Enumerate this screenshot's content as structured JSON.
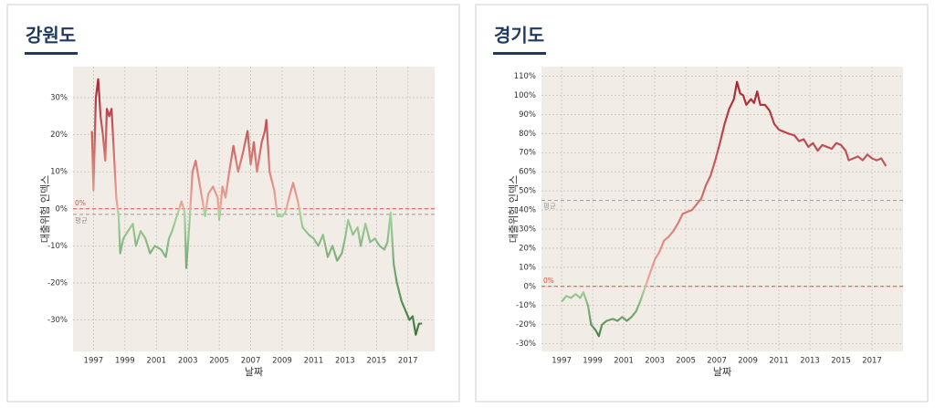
{
  "chart_data": [
    {
      "type": "line",
      "title": "강원도",
      "xlabel": "날짜",
      "ylabel": "대출위험 인덱스",
      "x": [
        1996.9,
        1997.0,
        1997.15,
        1997.3,
        1997.45,
        1997.6,
        1997.75,
        1997.85,
        1998.0,
        1998.15,
        1998.3,
        1998.45,
        1998.6,
        1998.7,
        1998.9,
        1999.2,
        1999.5,
        1999.7,
        2000.0,
        2000.3,
        2000.6,
        2000.9,
        2001.3,
        2001.6,
        2001.8,
        2002.0,
        2002.3,
        2002.6,
        2002.8,
        2002.9,
        2003.1,
        2003.3,
        2003.5,
        2003.7,
        2003.9,
        2004.1,
        2004.3,
        2004.6,
        2004.9,
        2005.0,
        2005.2,
        2005.4,
        2005.6,
        2005.9,
        2006.2,
        2006.5,
        2006.8,
        2007.0,
        2007.2,
        2007.4,
        2007.7,
        2007.9,
        2008.0,
        2008.2,
        2008.5,
        2008.7,
        2009.0,
        2009.2,
        2009.5,
        2009.7,
        2010.0,
        2010.3,
        2010.7,
        2011.0,
        2011.3,
        2011.6,
        2011.9,
        2012.2,
        2012.5,
        2012.8,
        2013.0,
        2013.2,
        2013.5,
        2013.8,
        2014.0,
        2014.3,
        2014.6,
        2014.9,
        2015.2,
        2015.5,
        2015.7,
        2015.9,
        2016.1,
        2016.3,
        2016.6,
        2016.9,
        2017.1,
        2017.3,
        2017.5,
        2017.7,
        2017.9
      ],
      "values": [
        21,
        5,
        30,
        35,
        25,
        20,
        13,
        27,
        25,
        27,
        15,
        3,
        -2,
        -12,
        -8,
        -6,
        -4,
        -10,
        -6,
        -8,
        -12,
        -10,
        -11,
        -13,
        -8,
        -6,
        -2,
        2,
        -1,
        -16,
        -4,
        10,
        13,
        8,
        3,
        -2,
        4,
        6,
        3,
        -3,
        6,
        3,
        9,
        17,
        10,
        15,
        21,
        12,
        18,
        10,
        18,
        21,
        24,
        10,
        5,
        -2,
        -2,
        -1,
        4,
        7,
        2,
        -5,
        -7,
        -8,
        -10,
        -7,
        -13,
        -10,
        -14,
        -12,
        -8,
        -3,
        -7,
        -5,
        -10,
        -4,
        -9,
        -8,
        -10,
        -11,
        -9,
        -1,
        -15,
        -20,
        -25,
        -28,
        -30,
        -29,
        -34,
        -31,
        -31
      ],
      "negative_colors": [
        "#2f6b33",
        "#a8d5a0"
      ],
      "positive_colors": [
        "#f0a898",
        "#a01c2c"
      ],
      "xlim": [
        1995.7,
        2018.7
      ],
      "ylim": [
        -38.5,
        38.4
      ],
      "xticks": [
        1997,
        1999,
        2001,
        2003,
        2005,
        2007,
        2009,
        2011,
        2013,
        2015,
        2017
      ],
      "yticks": [
        {
          "value": -30,
          "label": "-30%"
        },
        {
          "value": -20,
          "label": "-20%"
        },
        {
          "value": -10,
          "label": "-10%"
        },
        {
          "value": 0,
          "label": "0%"
        },
        {
          "value": 10,
          "label": "10%"
        },
        {
          "value": 20,
          "label": "20%"
        },
        {
          "value": 30,
          "label": "30%"
        }
      ],
      "reference_lines": [
        {
          "value": 0,
          "label": "0%",
          "color": "#d9534f"
        },
        {
          "value": -1.5,
          "label": "평균",
          "color": "#999999"
        }
      ],
      "grid": true
    },
    {
      "type": "line",
      "title": "경기도",
      "xlabel": "날짜",
      "ylabel": "대출위험 인덱스",
      "x": [
        1997.0,
        1997.3,
        1997.6,
        1997.9,
        1998.2,
        1998.4,
        1998.7,
        1998.9,
        1999.2,
        1999.4,
        1999.6,
        1999.9,
        2000.3,
        2000.6,
        2000.9,
        2001.2,
        2001.5,
        2001.8,
        2002.1,
        2002.4,
        2002.7,
        2003.0,
        2003.3,
        2003.6,
        2003.9,
        2004.2,
        2004.5,
        2004.8,
        2005.1,
        2005.4,
        2005.7,
        2006.0,
        2006.3,
        2006.6,
        2006.9,
        2007.2,
        2007.5,
        2007.8,
        2008.1,
        2008.3,
        2008.5,
        2008.7,
        2008.9,
        2009.2,
        2009.4,
        2009.6,
        2009.8,
        2010.1,
        2010.4,
        2010.7,
        2011.0,
        2011.3,
        2011.6,
        2012.0,
        2012.3,
        2012.6,
        2012.9,
        2013.2,
        2013.5,
        2013.8,
        2014.1,
        2014.4,
        2014.7,
        2015.0,
        2015.3,
        2015.5,
        2015.8,
        2016.1,
        2016.4,
        2016.7,
        2017.0,
        2017.3,
        2017.6,
        2017.9
      ],
      "values": [
        -8,
        -5,
        -6,
        -4,
        -6,
        -3,
        -10,
        -20,
        -23,
        -26,
        -20,
        -18,
        -17,
        -18,
        -16,
        -18,
        -16,
        -13,
        -7,
        0,
        7,
        14,
        18,
        24,
        26,
        29,
        33,
        38,
        39,
        40,
        43,
        46,
        53,
        58,
        66,
        75,
        85,
        93,
        98,
        107,
        101,
        100,
        95,
        98,
        96,
        102,
        95,
        95,
        92,
        85,
        82,
        81,
        80,
        79,
        76,
        77,
        73,
        75,
        71,
        74,
        73,
        72,
        75,
        74,
        71,
        66,
        67,
        68,
        66,
        69,
        67,
        66,
        67,
        63
      ],
      "negative_colors": [
        "#2f6b33",
        "#a8d5a0"
      ],
      "positive_colors": [
        "#f0a898",
        "#a01c2c"
      ],
      "xlim": [
        1995.7,
        2019.0
      ],
      "ylim": [
        -34,
        115
      ],
      "xticks": [
        1997,
        1999,
        2001,
        2003,
        2005,
        2007,
        2009,
        2011,
        2013,
        2015,
        2017
      ],
      "yticks": [
        {
          "value": -30,
          "label": "-30%"
        },
        {
          "value": -20,
          "label": "-20%"
        },
        {
          "value": -10,
          "label": "-10%"
        },
        {
          "value": 0,
          "label": "0%"
        },
        {
          "value": 10,
          "label": "10%"
        },
        {
          "value": 20,
          "label": "20%"
        },
        {
          "value": 30,
          "label": "30%"
        },
        {
          "value": 40,
          "label": "40%"
        },
        {
          "value": 50,
          "label": "50%"
        },
        {
          "value": 60,
          "label": "60%"
        },
        {
          "value": 70,
          "label": "70%"
        },
        {
          "value": 80,
          "label": "80%"
        },
        {
          "value": 90,
          "label": "90%"
        },
        {
          "value": 100,
          "label": "100%"
        },
        {
          "value": 110,
          "label": "110%"
        }
      ],
      "reference_lines": [
        {
          "value": 0,
          "label": "0%",
          "color": "#d9534f"
        },
        {
          "value": 45,
          "label": "평균",
          "color": "#999999"
        }
      ],
      "grid": true
    }
  ]
}
